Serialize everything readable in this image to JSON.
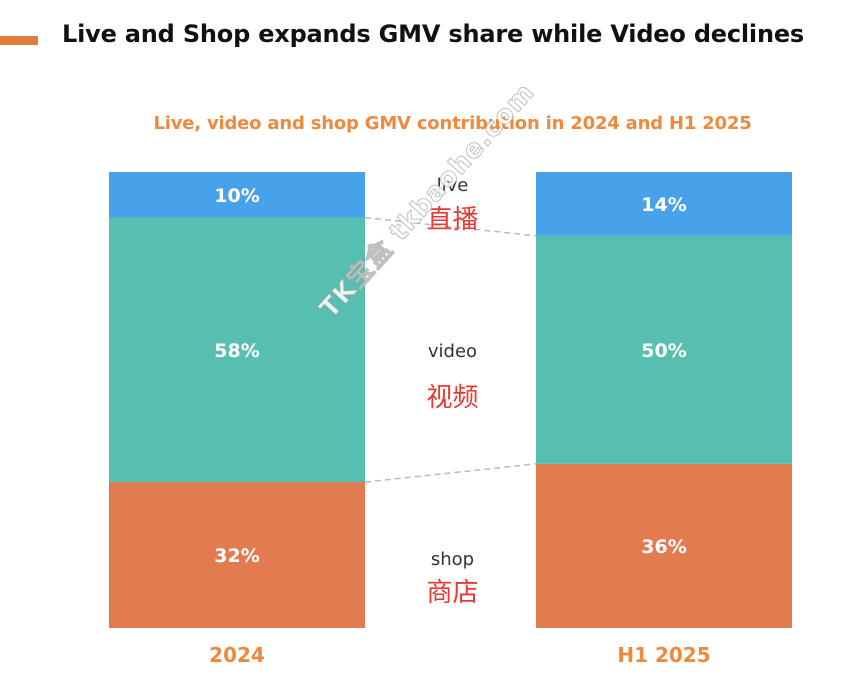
{
  "header": {
    "title": "Live and Shop expands GMV share while Video declines"
  },
  "watermark": "TK宝盒 tkbaohe.com",
  "chart_data": {
    "type": "bar",
    "stacked": true,
    "percent": true,
    "title": "Live, video and shop GMV contribution in 2024 and H1 2025",
    "categories": [
      "2024",
      "H1 2025"
    ],
    "series": [
      {
        "name": "shop",
        "name_cn": "商店",
        "values": [
          32,
          36
        ],
        "color": "#e27b50"
      },
      {
        "name": "video",
        "name_cn": "视频",
        "values": [
          58,
          50
        ],
        "color": "#57bfb0"
      },
      {
        "name": "live",
        "name_cn": "直播",
        "values": [
          10,
          14
        ],
        "color": "#47a2ea"
      }
    ],
    "value_suffix": "%",
    "ylim": [
      0,
      100
    ],
    "connector_color": "#bbbbbb",
    "grid": false,
    "legend": "between bars"
  }
}
